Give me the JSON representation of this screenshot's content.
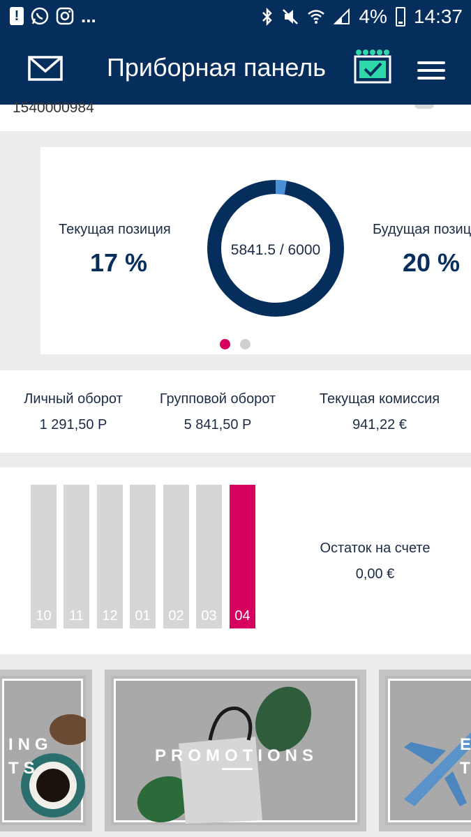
{
  "status_bar": {
    "battery": "4%",
    "time": "14:37",
    "more": "..."
  },
  "header": {
    "title": "Приборная панель"
  },
  "top_card": {
    "id_number": "1540000984"
  },
  "position_carousel": {
    "current_label": "Текущая позиция",
    "current_value": "17 %",
    "ring_text": "5841.5 / 6000",
    "ring_progress": 0.026,
    "future_label": "Будущая позиц",
    "future_value": "20 %",
    "active_page": 1,
    "page_count": 2
  },
  "stats": {
    "personal": {
      "label": "Личный оборот",
      "value": "1 291,50 Р"
    },
    "group": {
      "label": "Групповой оборот",
      "value": "5 841,50 Р"
    },
    "commission": {
      "label": "Текущая комиссия",
      "value": "941,22 €"
    }
  },
  "months": {
    "items": [
      "10",
      "11",
      "12",
      "01",
      "02",
      "03",
      "04"
    ],
    "active": "04"
  },
  "balance": {
    "label": "Остаток на счете",
    "value": "0,00 €"
  },
  "promos": {
    "left_title": "ING\nTS",
    "center_title": "PROMOTIONS",
    "right_title": "E\nT"
  },
  "colors": {
    "brand": "#062e5c",
    "accent": "#d6005f",
    "ring_highlight": "#4a90d9",
    "calendar_dots": "#2ed8a8"
  }
}
